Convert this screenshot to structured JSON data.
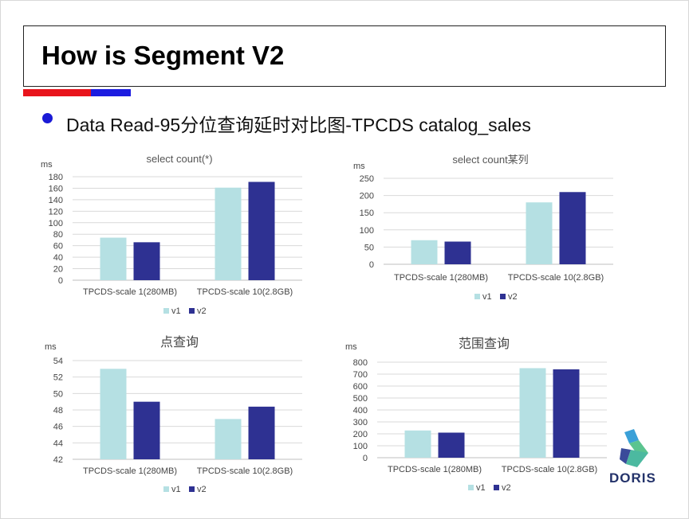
{
  "slide": {
    "title": "How is Segment V2",
    "bullet": "Data Read-95分位查询延时对比图-TPCDS catalog_sales",
    "logo_text": "DORIS"
  },
  "chart_data": [
    {
      "type": "bar",
      "title": "select count(*)",
      "ylabel": "ms",
      "categories": [
        "TPCDS-scale 1(280MB)",
        "TPCDS-scale 10(2.8GB)"
      ],
      "series": [
        {
          "name": "v1",
          "values": [
            74,
            161
          ]
        },
        {
          "name": "v2",
          "values": [
            66,
            171
          ]
        }
      ],
      "ylim": [
        0,
        180
      ],
      "yticks": [
        0,
        20,
        40,
        60,
        80,
        100,
        120,
        140,
        160,
        180
      ],
      "grid": true,
      "legend": "bottom"
    },
    {
      "type": "bar",
      "title": "select count某列",
      "ylabel": "ms",
      "categories": [
        "TPCDS-scale 1(280MB)",
        "TPCDS-scale 10(2.8GB)"
      ],
      "series": [
        {
          "name": "v1",
          "values": [
            70,
            180
          ]
        },
        {
          "name": "v2",
          "values": [
            66,
            210
          ]
        }
      ],
      "ylim": [
        0,
        250
      ],
      "yticks": [
        0,
        50,
        100,
        150,
        200,
        250
      ],
      "grid": true,
      "legend": "bottom"
    },
    {
      "type": "bar",
      "title": "点查询",
      "ylabel": "ms",
      "categories": [
        "TPCDS-scale 1(280MB)",
        "TPCDS-scale 10(2.8GB)"
      ],
      "series": [
        {
          "name": "v1",
          "values": [
            53,
            46.9
          ]
        },
        {
          "name": "v2",
          "values": [
            49,
            48.4
          ]
        }
      ],
      "ylim": [
        42,
        54
      ],
      "yticks": [
        42,
        44,
        46,
        48,
        50,
        52,
        54
      ],
      "grid": true,
      "legend": "bottom"
    },
    {
      "type": "bar",
      "title": "范围查询",
      "ylabel": "ms",
      "categories": [
        "TPCDS-scale 1(280MB)",
        "TPCDS-scale 10(2.8GB)"
      ],
      "series": [
        {
          "name": "v1",
          "values": [
            228,
            750
          ]
        },
        {
          "name": "v2",
          "values": [
            210,
            740
          ]
        }
      ],
      "ylim": [
        0,
        800
      ],
      "yticks": [
        0,
        100,
        200,
        300,
        400,
        500,
        600,
        700,
        800
      ],
      "grid": true,
      "legend": "bottom"
    }
  ],
  "colors": {
    "v1": "#b5e0e3",
    "v2": "#2e3192",
    "accent_red": "#e8141c",
    "accent_blue": "#1c1ce0"
  }
}
